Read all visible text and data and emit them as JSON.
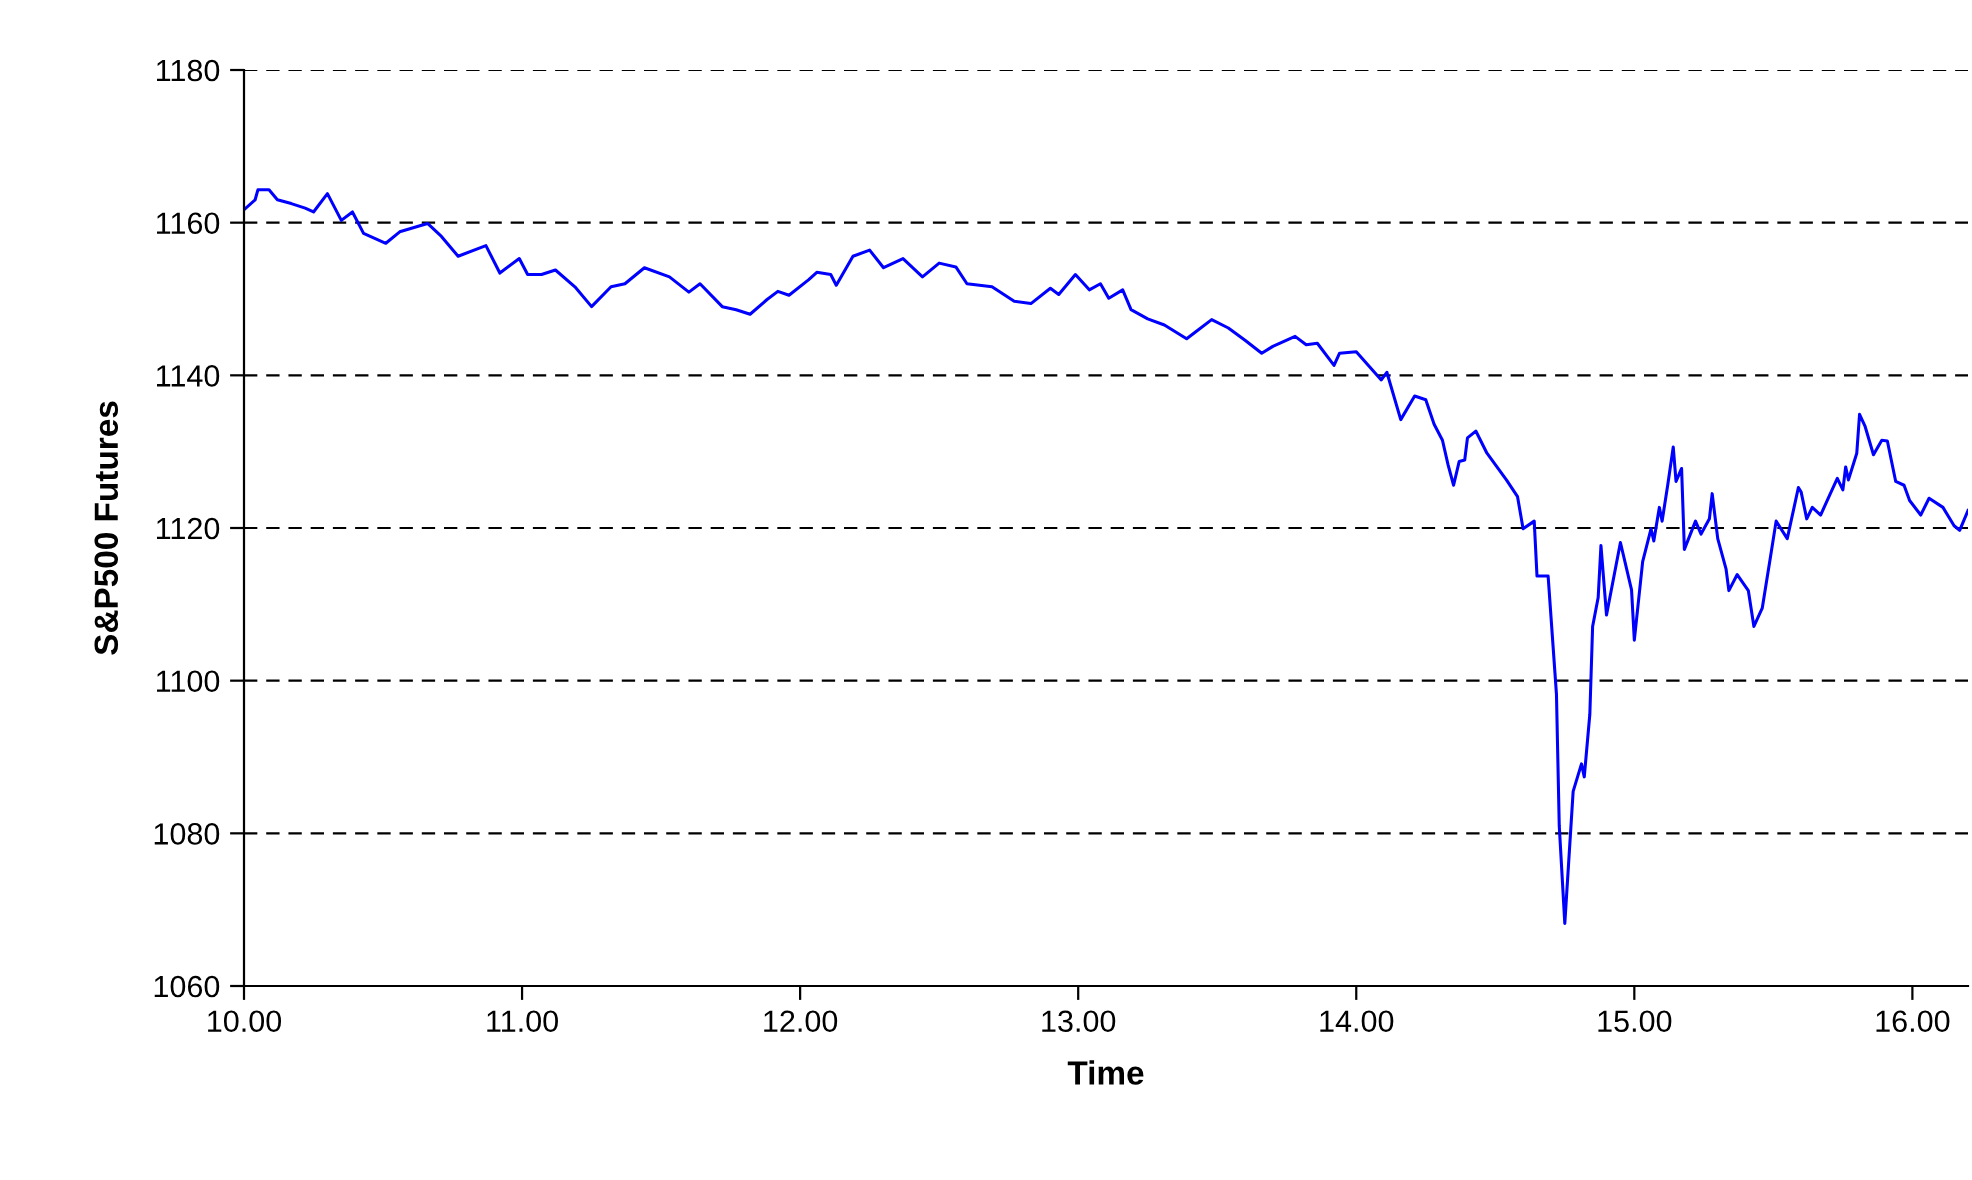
{
  "chart_data": {
    "type": "line",
    "xlabel": "Time",
    "ylabel": "S&P500 Futures",
    "xlim": [
      10,
      16.2
    ],
    "ylim": [
      1060,
      1180
    ],
    "xticks": [
      {
        "value": 10,
        "label": "10.00"
      },
      {
        "value": 11,
        "label": "11.00"
      },
      {
        "value": 12,
        "label": "12.00"
      },
      {
        "value": 13,
        "label": "13.00"
      },
      {
        "value": 14,
        "label": "14.00"
      },
      {
        "value": 15,
        "label": "15.00"
      },
      {
        "value": 16,
        "label": "16.00"
      }
    ],
    "yticks": [
      1060,
      1080,
      1100,
      1120,
      1140,
      1160,
      1180
    ],
    "grid": "y",
    "legend": false,
    "marker": "none",
    "line_style": "solid",
    "series": [
      {
        "color": "#0000ff",
        "x": [
          10.0,
          10.04,
          10.05,
          10.09,
          10.12,
          10.17,
          10.22,
          10.25,
          10.3,
          10.35,
          10.39,
          10.43,
          10.51,
          10.56,
          10.66,
          10.71,
          10.77,
          10.87,
          10.92,
          10.99,
          11.02,
          11.07,
          11.12,
          11.19,
          11.25,
          11.32,
          11.37,
          11.44,
          11.53,
          11.6,
          11.64,
          11.72,
          11.77,
          11.82,
          11.88,
          11.92,
          11.96,
          12.03,
          12.06,
          12.11,
          12.13,
          12.19,
          12.25,
          12.3,
          12.37,
          12.44,
          12.5,
          12.56,
          12.6,
          12.69,
          12.77,
          12.83,
          12.9,
          12.93,
          12.99,
          13.04,
          13.08,
          13.11,
          13.16,
          13.19,
          13.25,
          13.31,
          13.39,
          13.43,
          13.48,
          13.54,
          13.6,
          13.66,
          13.7,
          13.78,
          13.82,
          13.86,
          13.92,
          13.94,
          14.0,
          14.09,
          14.11,
          14.16,
          14.21,
          14.25,
          14.28,
          14.31,
          14.33,
          14.35,
          14.37,
          14.39,
          14.4,
          14.43,
          14.47,
          14.54,
          14.58,
          14.6,
          14.64,
          14.65,
          14.69,
          14.72,
          14.73,
          14.75,
          14.78,
          14.81,
          14.82,
          14.84,
          14.85,
          14.87,
          14.88,
          14.9,
          14.95,
          14.99,
          15.0,
          15.03,
          15.06,
          15.07,
          15.09,
          15.1,
          15.12,
          15.14,
          15.15,
          15.17,
          15.18,
          15.22,
          15.24,
          15.27,
          15.28,
          15.3,
          15.33,
          15.34,
          15.37,
          15.41,
          15.43,
          15.46,
          15.49,
          15.51,
          15.55,
          15.59,
          15.6,
          15.62,
          15.64,
          15.67,
          15.7,
          15.73,
          15.75,
          15.76,
          15.77,
          15.8,
          15.81,
          15.83,
          15.86,
          15.89,
          15.91,
          15.94,
          15.97,
          15.99,
          16.03,
          16.06,
          16.11,
          16.15,
          16.17,
          16.2
        ],
        "values": [
          1161.7,
          1163.0,
          1164.3,
          1164.3,
          1163.0,
          1162.5,
          1161.9,
          1161.4,
          1163.8,
          1160.3,
          1161.4,
          1158.6,
          1157.3,
          1158.8,
          1159.9,
          1158.2,
          1155.6,
          1157.0,
          1153.4,
          1155.3,
          1153.2,
          1153.2,
          1153.8,
          1151.6,
          1149.0,
          1151.6,
          1152.0,
          1154.1,
          1152.9,
          1150.9,
          1152.0,
          1149.0,
          1148.6,
          1148.0,
          1149.9,
          1151.0,
          1150.5,
          1152.5,
          1153.5,
          1153.2,
          1151.8,
          1155.6,
          1156.4,
          1154.1,
          1155.3,
          1152.9,
          1154.7,
          1154.2,
          1152.0,
          1151.6,
          1149.7,
          1149.4,
          1151.4,
          1150.6,
          1153.2,
          1151.2,
          1152.0,
          1150.1,
          1151.2,
          1148.6,
          1147.4,
          1146.6,
          1144.8,
          1145.9,
          1147.3,
          1146.2,
          1144.6,
          1142.9,
          1143.8,
          1145.1,
          1144.0,
          1144.2,
          1141.3,
          1142.9,
          1143.1,
          1139.4,
          1140.4,
          1134.2,
          1137.3,
          1136.8,
          1133.6,
          1131.5,
          1128.3,
          1125.6,
          1128.7,
          1128.9,
          1131.8,
          1132.7,
          1129.8,
          1126.3,
          1124.1,
          1119.9,
          1120.9,
          1113.7,
          1113.7,
          1098.2,
          1081.0,
          1068.2,
          1085.5,
          1089.1,
          1087.4,
          1095.6,
          1107.1,
          1110.9,
          1117.7,
          1108.6,
          1118.1,
          1111.9,
          1105.3,
          1115.6,
          1119.9,
          1118.3,
          1122.7,
          1120.9,
          1125.6,
          1130.6,
          1126.1,
          1127.8,
          1117.2,
          1120.9,
          1119.2,
          1121.2,
          1124.5,
          1118.6,
          1114.6,
          1111.8,
          1113.9,
          1111.8,
          1107.1,
          1109.5,
          1116.3,
          1120.9,
          1118.6,
          1125.3,
          1124.7,
          1121.2,
          1122.7,
          1121.7,
          1124.1,
          1126.5,
          1125.0,
          1128.0,
          1126.3,
          1129.8,
          1134.9,
          1133.3,
          1129.6,
          1131.5,
          1131.4,
          1126.1,
          1125.6,
          1123.6,
          1121.7,
          1123.9,
          1122.7,
          1120.3,
          1119.7,
          1122.3
        ]
      }
    ]
  }
}
